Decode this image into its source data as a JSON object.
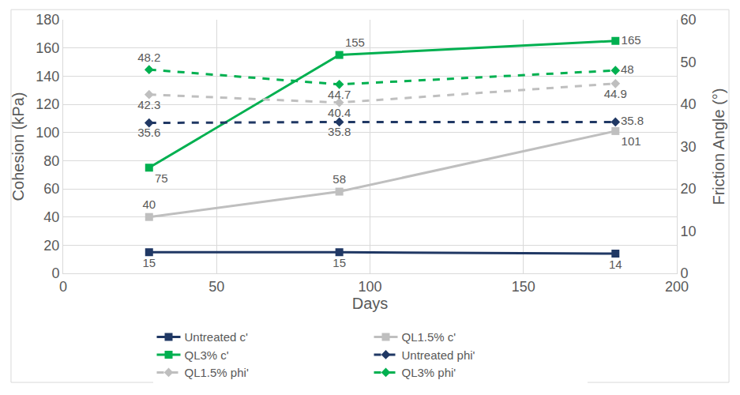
{
  "chart_data": {
    "type": "line",
    "x_label": "Days",
    "y_label": "Cohesion (kPa)",
    "y2_label": "Friction Angle (°)",
    "x": [
      28,
      90,
      180
    ],
    "xlim": [
      0,
      200
    ],
    "xticks": [
      0,
      50,
      100,
      150,
      200
    ],
    "ylim": [
      0,
      180
    ],
    "yticks": [
      0,
      20,
      40,
      60,
      80,
      100,
      120,
      140,
      160,
      180
    ],
    "y2lim": [
      0,
      60
    ],
    "y2ticks": [
      0,
      10,
      20,
      30,
      40,
      50,
      60
    ],
    "grid": true,
    "legend": "bottom",
    "data_labels": true,
    "series": [
      {
        "name": "Untreated c'",
        "color": "#203864",
        "marker": "square",
        "line_style": "solid",
        "values": [
          15,
          15,
          14
        ]
      },
      {
        "name": "QL1.5% c'",
        "color": "#bfbfbf",
        "marker": "square",
        "line_style": "solid",
        "values": [
          40,
          58,
          101
        ]
      },
      {
        "name": "QL3% c'",
        "color": "#00b050",
        "marker": "square",
        "line_style": "solid",
        "values": [
          75,
          155,
          165
        ]
      },
      {
        "name": "Untreated phi'",
        "color": "#203864",
        "marker": "diamond",
        "line_style": "dash",
        "axis": "y2",
        "values": [
          35.6,
          35.8,
          35.8
        ]
      },
      {
        "name": "QL1.5% phi'",
        "color": "#bfbfbf",
        "marker": "diamond",
        "line_style": "dash",
        "axis": "y2",
        "values": [
          42.3,
          40.4,
          44.9
        ]
      },
      {
        "name": "QL3% phi'",
        "color": "#00b050",
        "marker": "diamond",
        "line_style": "dash",
        "axis": "y2",
        "values": [
          48.2,
          44.7,
          48
        ]
      }
    ]
  }
}
